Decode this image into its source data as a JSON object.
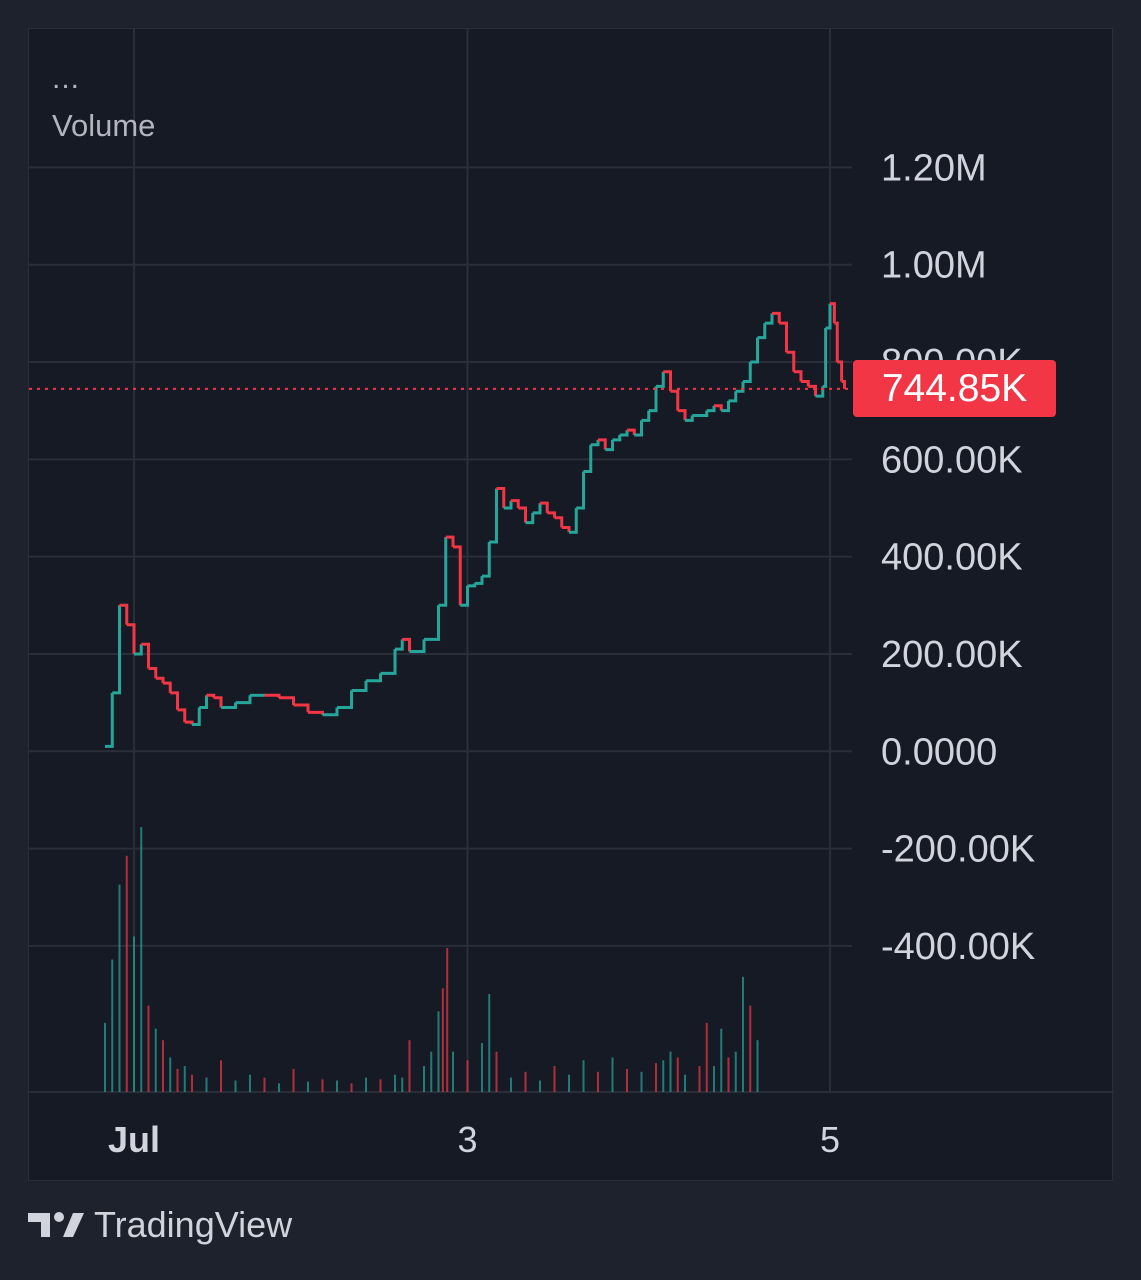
{
  "legend": {
    "menu_glyph": "...",
    "title": "Volume"
  },
  "brand": {
    "name": "TradingView",
    "logo_icon": "tradingview-logo-icon"
  },
  "chart_data": {
    "type": "line",
    "title": "",
    "xlabel": "",
    "ylabel": "",
    "x_ticks": [
      "Jul",
      "3",
      "5"
    ],
    "y_ticks": [
      "1.20M",
      "1.00M",
      "800.00K",
      "600.00K",
      "400.00K",
      "200.00K",
      "0.0000",
      "-200.00K",
      "-400.00K"
    ],
    "ylim": [
      -540000,
      1320000
    ],
    "grid": true,
    "last_value_label": "744.85K",
    "colors": {
      "up": "#26a69a",
      "down": "#f23645",
      "grid": "#2a2e39",
      "text": "#d1d4dc",
      "background": "#161a25"
    },
    "series": [
      {
        "x": [
          0,
          0.05,
          0.1,
          0.15,
          0.2,
          0.25,
          0.3,
          0.35,
          0.4,
          0.45,
          0.5,
          0.55,
          0.6,
          0.65,
          0.7,
          0.75,
          0.8,
          0.9,
          1.0,
          1.1,
          1.2,
          1.3,
          1.4,
          1.5,
          1.6,
          1.7,
          1.8,
          1.9,
          2.0,
          2.05,
          2.1,
          2.2,
          2.3,
          2.35,
          2.4,
          2.45,
          2.5,
          2.55,
          2.6,
          2.65,
          2.7,
          2.75,
          2.8,
          2.85,
          2.9,
          2.95,
          3.0,
          3.05,
          3.1,
          3.15,
          3.2,
          3.25,
          3.3,
          3.35,
          3.4,
          3.45,
          3.5,
          3.55,
          3.6,
          3.65,
          3.7,
          3.75,
          3.8,
          3.85,
          3.9,
          3.95,
          4.0,
          4.05,
          4.1,
          4.15,
          4.2,
          4.25,
          4.3,
          4.35,
          4.4,
          4.45,
          4.5,
          4.55,
          4.6,
          4.65,
          4.7,
          4.75,
          4.8,
          4.85,
          4.9,
          4.95,
          4.97,
          5.0,
          5.03,
          5.05,
          5.08,
          5.1
        ],
        "values": [
          10000,
          120000,
          300000,
          260000,
          200000,
          220000,
          170000,
          150000,
          140000,
          120000,
          85000,
          60000,
          55000,
          90000,
          115000,
          110000,
          90000,
          100000,
          115000,
          115000,
          110000,
          95000,
          80000,
          75000,
          90000,
          125000,
          145000,
          160000,
          210000,
          230000,
          205000,
          230000,
          300000,
          440000,
          420000,
          300000,
          340000,
          345000,
          360000,
          430000,
          540000,
          500000,
          515000,
          500000,
          470000,
          490000,
          510000,
          490000,
          480000,
          460000,
          450000,
          500000,
          575000,
          630000,
          640000,
          620000,
          640000,
          650000,
          660000,
          650000,
          680000,
          700000,
          750000,
          780000,
          740000,
          700000,
          680000,
          690000,
          690000,
          700000,
          710000,
          700000,
          720000,
          740000,
          760000,
          800000,
          850000,
          880000,
          900000,
          880000,
          820000,
          780000,
          760000,
          750000,
          730000,
          750000,
          870000,
          920000,
          880000,
          800000,
          760000,
          744850
        ],
        "name": ""
      }
    ],
    "volume_max": 460000,
    "volume": [
      {
        "x": 0,
        "v": 120000,
        "up": true
      },
      {
        "x": 0.05,
        "v": 230000,
        "up": true
      },
      {
        "x": 0.1,
        "v": 360000,
        "up": true
      },
      {
        "x": 0.15,
        "v": 410000,
        "up": false
      },
      {
        "x": 0.2,
        "v": 270000,
        "up": true
      },
      {
        "x": 0.25,
        "v": 460000,
        "up": true
      },
      {
        "x": 0.3,
        "v": 150000,
        "up": false
      },
      {
        "x": 0.35,
        "v": 110000,
        "up": true
      },
      {
        "x": 0.4,
        "v": 90000,
        "up": false
      },
      {
        "x": 0.45,
        "v": 60000,
        "up": true
      },
      {
        "x": 0.5,
        "v": 40000,
        "up": false
      },
      {
        "x": 0.55,
        "v": 45000,
        "up": true
      },
      {
        "x": 0.6,
        "v": 30000,
        "up": false
      },
      {
        "x": 0.7,
        "v": 25000,
        "up": true
      },
      {
        "x": 0.8,
        "v": 55000,
        "up": false
      },
      {
        "x": 0.9,
        "v": 20000,
        "up": true
      },
      {
        "x": 1.0,
        "v": 30000,
        "up": true
      },
      {
        "x": 1.1,
        "v": 25000,
        "up": false
      },
      {
        "x": 1.2,
        "v": 15000,
        "up": true
      },
      {
        "x": 1.3,
        "v": 40000,
        "up": false
      },
      {
        "x": 1.4,
        "v": 18000,
        "up": true
      },
      {
        "x": 1.5,
        "v": 22000,
        "up": false
      },
      {
        "x": 1.6,
        "v": 20000,
        "up": true
      },
      {
        "x": 1.7,
        "v": 15000,
        "up": false
      },
      {
        "x": 1.8,
        "v": 25000,
        "up": true
      },
      {
        "x": 1.9,
        "v": 22000,
        "up": false
      },
      {
        "x": 2.0,
        "v": 30000,
        "up": true
      },
      {
        "x": 2.05,
        "v": 25000,
        "up": true
      },
      {
        "x": 2.1,
        "v": 90000,
        "up": false
      },
      {
        "x": 2.2,
        "v": 45000,
        "up": true
      },
      {
        "x": 2.25,
        "v": 70000,
        "up": true
      },
      {
        "x": 2.3,
        "v": 140000,
        "up": true
      },
      {
        "x": 2.33,
        "v": 180000,
        "up": false
      },
      {
        "x": 2.36,
        "v": 250000,
        "up": false
      },
      {
        "x": 2.4,
        "v": 70000,
        "up": true
      },
      {
        "x": 2.5,
        "v": 55000,
        "up": false
      },
      {
        "x": 2.6,
        "v": 85000,
        "up": true
      },
      {
        "x": 2.65,
        "v": 170000,
        "up": true
      },
      {
        "x": 2.7,
        "v": 70000,
        "up": false
      },
      {
        "x": 2.8,
        "v": 25000,
        "up": true
      },
      {
        "x": 2.9,
        "v": 35000,
        "up": false
      },
      {
        "x": 3.0,
        "v": 20000,
        "up": true
      },
      {
        "x": 3.1,
        "v": 45000,
        "up": false
      },
      {
        "x": 3.2,
        "v": 30000,
        "up": true
      },
      {
        "x": 3.3,
        "v": 55000,
        "up": true
      },
      {
        "x": 3.4,
        "v": 35000,
        "up": false
      },
      {
        "x": 3.5,
        "v": 60000,
        "up": true
      },
      {
        "x": 3.6,
        "v": 40000,
        "up": false
      },
      {
        "x": 3.7,
        "v": 35000,
        "up": true
      },
      {
        "x": 3.8,
        "v": 50000,
        "up": false
      },
      {
        "x": 3.85,
        "v": 55000,
        "up": true
      },
      {
        "x": 3.9,
        "v": 70000,
        "up": true
      },
      {
        "x": 3.95,
        "v": 60000,
        "up": false
      },
      {
        "x": 4.0,
        "v": 30000,
        "up": true
      },
      {
        "x": 4.1,
        "v": 45000,
        "up": false
      },
      {
        "x": 4.15,
        "v": 120000,
        "up": false
      },
      {
        "x": 4.2,
        "v": 45000,
        "up": true
      },
      {
        "x": 4.25,
        "v": 110000,
        "up": true
      },
      {
        "x": 4.3,
        "v": 60000,
        "up": false
      },
      {
        "x": 4.35,
        "v": 70000,
        "up": true
      },
      {
        "x": 4.4,
        "v": 200000,
        "up": true
      },
      {
        "x": 4.45,
        "v": 150000,
        "up": false
      },
      {
        "x": 4.5,
        "v": 90000,
        "up": true
      }
    ]
  }
}
